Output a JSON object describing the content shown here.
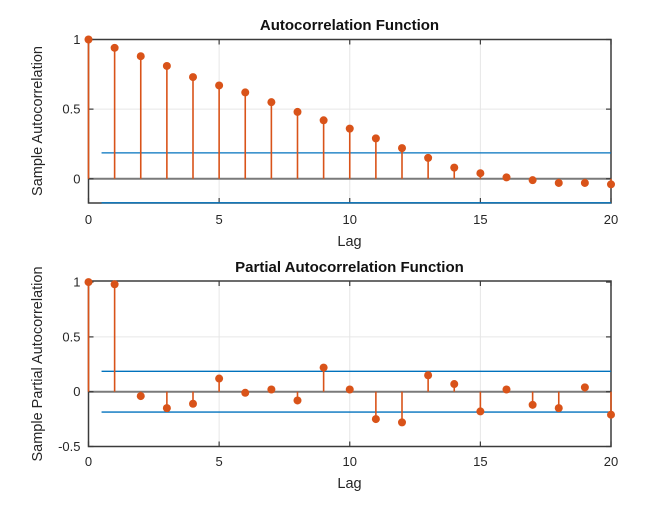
{
  "figure": {
    "colors": {
      "stem": "#d95319",
      "confidence_bound": "#0072bd",
      "axes_box": "#3b3b3b",
      "zero_line": "#7a7a7a",
      "grid": "#e6e6e6",
      "tick_text": "#262626",
      "title_text": "#111111",
      "background": "#ffffff"
    }
  },
  "chart_data": [
    {
      "type": "stem",
      "title": "Autocorrelation Function",
      "xlabel": "Lag",
      "ylabel": "Sample Autocorrelation",
      "x": [
        0,
        1,
        2,
        3,
        4,
        5,
        6,
        7,
        8,
        9,
        10,
        11,
        12,
        13,
        14,
        15,
        16,
        17,
        18,
        19,
        20
      ],
      "values": [
        1.0,
        0.94,
        0.88,
        0.81,
        0.73,
        0.67,
        0.62,
        0.55,
        0.48,
        0.42,
        0.36,
        0.29,
        0.22,
        0.15,
        0.08,
        0.04,
        0.01,
        -0.01,
        -0.03,
        -0.03,
        -0.04
      ],
      "confidence_bounds": [
        0.186,
        -0.186
      ],
      "bounds_x_start": 0.5,
      "xlim": [
        0,
        20
      ],
      "ylim": [
        -0.174,
        1.0
      ],
      "xticks": [
        0,
        5,
        10,
        15,
        20
      ],
      "xtick_labels": [
        "0",
        "5",
        "10",
        "15",
        "20"
      ],
      "yticks": [
        0,
        0.5,
        1
      ],
      "ytick_labels": [
        "0",
        "0.5",
        "1"
      ],
      "grid": true,
      "legend": "none"
    },
    {
      "type": "stem",
      "title": "Partial Autocorrelation Function",
      "xlabel": "Lag",
      "ylabel": "Sample Partial Autocorrelation",
      "x": [
        0,
        1,
        2,
        3,
        4,
        5,
        6,
        7,
        8,
        9,
        10,
        11,
        12,
        13,
        14,
        15,
        16,
        17,
        18,
        19,
        20
      ],
      "values": [
        1.0,
        0.98,
        -0.04,
        -0.15,
        -0.11,
        0.12,
        -0.01,
        0.02,
        -0.08,
        0.22,
        0.02,
        -0.25,
        -0.28,
        0.15,
        0.07,
        -0.18,
        0.02,
        -0.12,
        -0.15,
        0.04,
        -0.21
      ],
      "confidence_bounds": [
        0.186,
        -0.186
      ],
      "bounds_x_start": 0.5,
      "xlim": [
        0,
        20
      ],
      "ylim": [
        -0.5,
        1.01
      ],
      "xticks": [
        0,
        5,
        10,
        15,
        20
      ],
      "xtick_labels": [
        "0",
        "5",
        "10",
        "15",
        "20"
      ],
      "yticks": [
        -0.5,
        0,
        0.5,
        1
      ],
      "ytick_labels": [
        "-0.5",
        "0",
        "0.5",
        "1"
      ],
      "grid": true,
      "legend": "none"
    }
  ]
}
